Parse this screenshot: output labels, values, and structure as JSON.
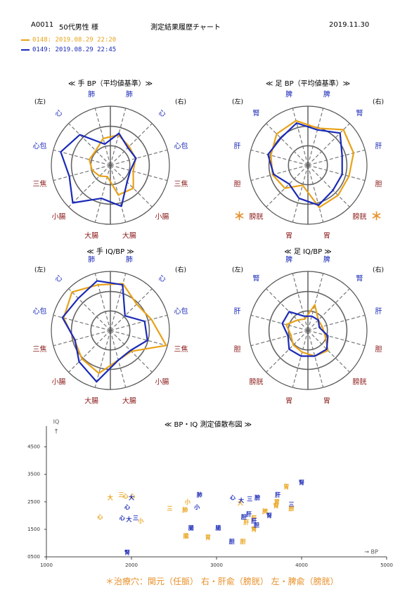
{
  "header": {
    "patient_id": "A0011",
    "group": "50代男性 様",
    "title": "測定結果履歴チャート",
    "date": "2019.11.30"
  },
  "measurements": [
    {
      "label": "0148: 2019.08.29 22:20",
      "color": "#e8a219"
    },
    {
      "label": "0149: 2019.08.29 22:45",
      "color": "#1a2ab8"
    }
  ],
  "colors": {
    "orange": "#e8a219",
    "blue": "#1a2ab8",
    "yin_label": "#1a2ab8",
    "yang_label": "#8b1a1a",
    "warn": "#e8902a",
    "grid": "#777777"
  },
  "side_labels": {
    "left": "(左)",
    "right": "(右)"
  },
  "chart_data": [
    {
      "type": "radar",
      "title": "≪ 手 BP（平均値基準）≫",
      "axes": [
        {
          "label": "肺",
          "color": "yin"
        },
        {
          "label": "心",
          "color": "yin"
        },
        {
          "label": "心包",
          "color": "yin"
        },
        {
          "label": "三焦",
          "color": "yang"
        },
        {
          "label": "小腸",
          "color": "yang"
        },
        {
          "label": "大腸",
          "color": "yang"
        },
        {
          "label": "大腸",
          "color": "yang"
        },
        {
          "label": "小腸",
          "color": "yang"
        },
        {
          "label": "三焦",
          "color": "yang"
        },
        {
          "label": "心包",
          "color": "yin"
        },
        {
          "label": "心",
          "color": "yin"
        },
        {
          "label": "肺",
          "color": "yin"
        }
      ],
      "side": "right-first",
      "marks": [],
      "series": [
        {
          "name": "0148",
          "values": [
            0.53,
            0.45,
            0.44,
            0.4,
            0.55,
            0.52,
            0.2,
            0.26,
            0.32,
            0.37,
            0.35,
            0.47
          ]
        },
        {
          "name": "0149",
          "values": [
            0.56,
            0.42,
            0.45,
            0.35,
            0.4,
            0.72,
            0.58,
            0.9,
            0.72,
            0.87,
            0.73,
            0.37
          ]
        }
      ]
    },
    {
      "type": "radar",
      "title": "≪ 足 BP（平均値基準）≫",
      "axes": [
        {
          "label": "脾",
          "color": "yin"
        },
        {
          "label": "腎",
          "color": "yin"
        },
        {
          "label": "肝",
          "color": "yin"
        },
        {
          "label": "胆",
          "color": "yang"
        },
        {
          "label": "膀胱",
          "color": "yang"
        },
        {
          "label": "胃",
          "color": "yang"
        },
        {
          "label": "胃",
          "color": "yang"
        },
        {
          "label": "膀胱",
          "color": "yang"
        },
        {
          "label": "胆",
          "color": "yang"
        },
        {
          "label": "肝",
          "color": "yin"
        },
        {
          "label": "腎",
          "color": "yin"
        },
        {
          "label": "脾",
          "color": "yin"
        }
      ],
      "marks": [
        "膀胱-left",
        "膀胱-right"
      ],
      "series": [
        {
          "name": "0148",
          "values": [
            0.65,
            0.85,
            0.8,
            0.72,
            0.72,
            0.74,
            0.35,
            0.55,
            0.62,
            0.65,
            0.75,
            0.78
          ]
        },
        {
          "name": "0149",
          "values": [
            0.62,
            0.77,
            0.6,
            0.6,
            0.6,
            0.7,
            0.58,
            0.45,
            0.6,
            0.7,
            0.65,
            0.74
          ]
        }
      ]
    },
    {
      "type": "radar",
      "title": "≪ 手 IQ/BP ≫",
      "axes": [
        {
          "label": "肺",
          "color": "yin"
        },
        {
          "label": "心",
          "color": "yin"
        },
        {
          "label": "心包",
          "color": "yin"
        },
        {
          "label": "三焦",
          "color": "yang"
        },
        {
          "label": "小腸",
          "color": "yang"
        },
        {
          "label": "大腸",
          "color": "yang"
        },
        {
          "label": "大腸",
          "color": "yang"
        },
        {
          "label": "小腸",
          "color": "yang"
        },
        {
          "label": "三焦",
          "color": "yang"
        },
        {
          "label": "心包",
          "color": "yin"
        },
        {
          "label": "心",
          "color": "yin"
        },
        {
          "label": "肺",
          "color": "yin"
        }
      ],
      "marks": [],
      "series": [
        {
          "name": "0148",
          "values": [
            0.82,
            0.63,
            0.72,
            0.98,
            0.5,
            0.52,
            0.75,
            0.68,
            0.63,
            0.82,
            0.92,
            0.8
          ]
        },
        {
          "name": "0149",
          "values": [
            0.8,
            0.35,
            0.6,
            0.65,
            0.48,
            0.52,
            0.9,
            0.75,
            0.62,
            0.84,
            0.77,
            0.87
          ]
        }
      ]
    },
    {
      "type": "radar",
      "title": "≪ 足 IQ/BP ≫",
      "axes": [
        {
          "label": "脾",
          "color": "yin"
        },
        {
          "label": "腎",
          "color": "yin"
        },
        {
          "label": "肝",
          "color": "yin"
        },
        {
          "label": "胆",
          "color": "yang"
        },
        {
          "label": "膀胱",
          "color": "yang"
        },
        {
          "label": "胃",
          "color": "yang"
        },
        {
          "label": "胃",
          "color": "yang"
        },
        {
          "label": "膀胱",
          "color": "yang"
        },
        {
          "label": "胆",
          "color": "yang"
        },
        {
          "label": "肝",
          "color": "yin"
        },
        {
          "label": "腎",
          "color": "yin"
        },
        {
          "label": "脾",
          "color": "yin"
        }
      ],
      "marks": [],
      "series": [
        {
          "name": "0148",
          "values": [
            0.45,
            0.25,
            0.25,
            0.3,
            0.48,
            0.45,
            0.38,
            0.35,
            0.3,
            0.38,
            0.25,
            0.2
          ]
        },
        {
          "name": "0149",
          "values": [
            0.25,
            0.25,
            0.2,
            0.35,
            0.45,
            0.45,
            0.45,
            0.45,
            0.35,
            0.45,
            0.45,
            0.25
          ]
        }
      ]
    },
    {
      "type": "scatter",
      "title": "≪ BP・IQ 測定値散布図 ≫",
      "xlabel": "→ BP",
      "ylabel": "IQ ↑",
      "xlim": [
        1000,
        5000
      ],
      "ylim": [
        500,
        5000
      ],
      "x_ticks": [
        "1000",
        "2000",
        "3000",
        "4000",
        "5000"
      ],
      "y_ticks": [
        "0500",
        "1500",
        "2500",
        "3500",
        "4500"
      ],
      "series": [
        {
          "name": "0148",
          "points": [
            {
              "x": 1630,
              "y": 1950,
              "label": "心"
            },
            {
              "x": 1750,
              "y": 2650,
              "label": "大"
            },
            {
              "x": 1880,
              "y": 2750,
              "label": "三"
            },
            {
              "x": 1930,
              "y": 2700,
              "label": "心"
            },
            {
              "x": 2010,
              "y": 2700,
              "label": "心"
            },
            {
              "x": 2110,
              "y": 1800,
              "label": "小"
            },
            {
              "x": 2450,
              "y": 2250,
              "label": "三"
            },
            {
              "x": 2630,
              "y": 2200,
              "label": "肺"
            },
            {
              "x": 2660,
              "y": 2500,
              "label": "小"
            },
            {
              "x": 2640,
              "y": 1250,
              "label": "腸"
            },
            {
              "x": 2900,
              "y": 1200,
              "label": "胃"
            },
            {
              "x": 3280,
              "y": 2450,
              "label": "大"
            },
            {
              "x": 3350,
              "y": 1750,
              "label": "肝"
            },
            {
              "x": 3440,
              "y": 1900,
              "label": "肝"
            },
            {
              "x": 3440,
              "y": 1500,
              "label": "腎"
            },
            {
              "x": 3570,
              "y": 2150,
              "label": "脾"
            },
            {
              "x": 3700,
              "y": 2350,
              "label": "腎"
            },
            {
              "x": 3710,
              "y": 2500,
              "label": "胃"
            },
            {
              "x": 3820,
              "y": 3050,
              "label": "胃"
            },
            {
              "x": 3880,
              "y": 2250,
              "label": "膀"
            },
            {
              "x": 3310,
              "y": 1050,
              "label": "胆"
            }
          ]
        },
        {
          "name": "0149",
          "points": [
            {
              "x": 1950,
              "y": 650,
              "label": "腎"
            },
            {
              "x": 1950,
              "y": 2300,
              "label": "心"
            },
            {
              "x": 1970,
              "y": 1850,
              "label": "大"
            },
            {
              "x": 1890,
              "y": 1900,
              "label": "心"
            },
            {
              "x": 2000,
              "y": 2650,
              "label": "大"
            },
            {
              "x": 2050,
              "y": 1900,
              "label": "三"
            },
            {
              "x": 2800,
              "y": 2750,
              "label": "肺"
            },
            {
              "x": 2770,
              "y": 2300,
              "label": "小"
            },
            {
              "x": 2700,
              "y": 1550,
              "label": "腸"
            },
            {
              "x": 3020,
              "y": 1550,
              "label": "腸"
            },
            {
              "x": 3190,
              "y": 2650,
              "label": "心"
            },
            {
              "x": 3290,
              "y": 2550,
              "label": "大"
            },
            {
              "x": 3390,
              "y": 2600,
              "label": "三"
            },
            {
              "x": 3320,
              "y": 1950,
              "label": "胆"
            },
            {
              "x": 3380,
              "y": 2050,
              "label": "肝"
            },
            {
              "x": 3440,
              "y": 1800,
              "label": "肝"
            },
            {
              "x": 3470,
              "y": 1650,
              "label": "胆"
            },
            {
              "x": 3480,
              "y": 2650,
              "label": "膀"
            },
            {
              "x": 3620,
              "y": 2000,
              "label": "腎"
            },
            {
              "x": 3720,
              "y": 2750,
              "label": "肝"
            },
            {
              "x": 3880,
              "y": 2400,
              "label": "三"
            },
            {
              "x": 4000,
              "y": 3200,
              "label": "腎"
            },
            {
              "x": 3180,
              "y": 1050,
              "label": "胆"
            }
          ]
        }
      ]
    }
  ],
  "footnote": "＊治療穴：関元（任脈） 右・肝兪（膀胱） 左・脾兪（膀胱）",
  "mark_symbol": "＊"
}
